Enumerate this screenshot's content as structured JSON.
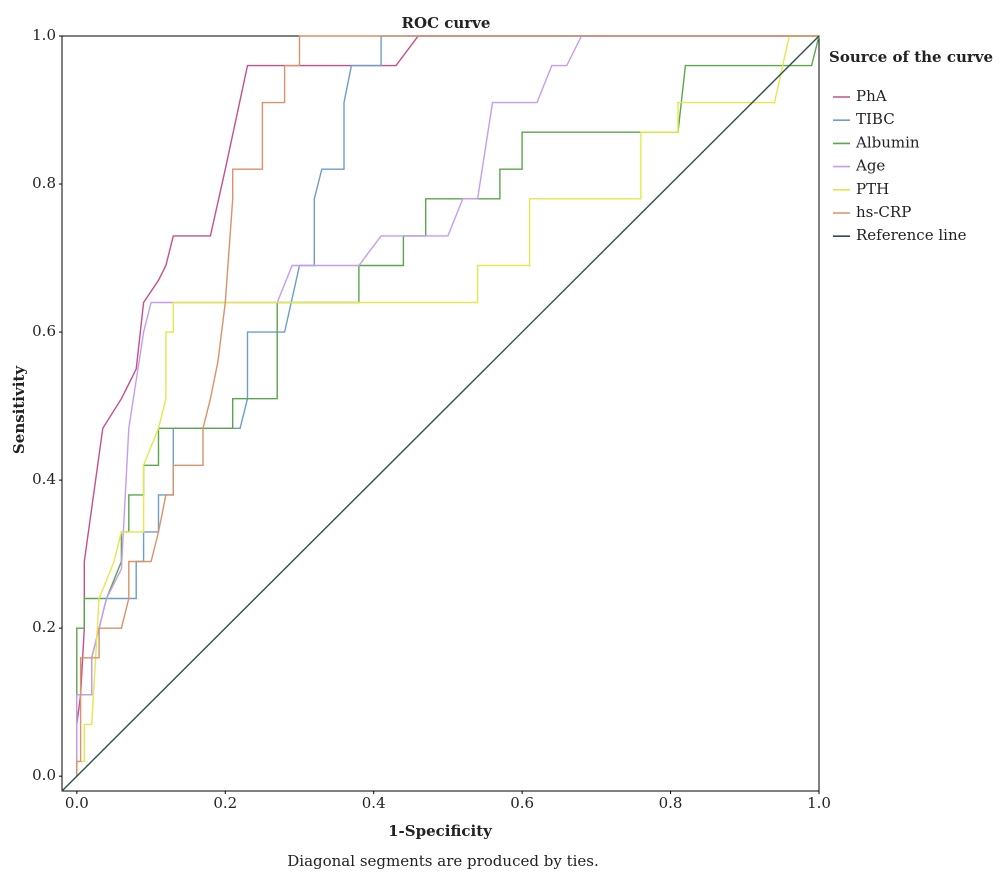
{
  "chart_data": {
    "type": "line",
    "title": "ROC curve",
    "x_label": "1-Specificity",
    "y_label": "Sensitivity",
    "note": "Diagonal segments are produced by ties.",
    "legend_title": "Source of the curve",
    "legend": "right",
    "grid": false,
    "xlim": [
      -0.02,
      1.0
    ],
    "ylim": [
      -0.02,
      1.0
    ],
    "xticks": [
      {
        "value": 0,
        "label": "0.0"
      },
      0.2,
      0.4,
      0.6,
      0.8,
      {
        "value": 1,
        "label": "1.0"
      }
    ],
    "yticks": [
      {
        "value": 0,
        "label": "0.0"
      },
      0.2,
      0.4,
      0.6,
      0.8,
      {
        "value": 1,
        "label": "1.0"
      }
    ],
    "series": [
      {
        "name": "PhA",
        "color": "#c4508c",
        "x": [
          0,
          0,
          0.005,
          0.01,
          0.01,
          0.035,
          0.06,
          0.08,
          0.09,
          0.11,
          0.12,
          0.13,
          0.18,
          0.2,
          0.23,
          0.43,
          0.46,
          1
        ],
        "values": [
          0,
          0.07,
          0.11,
          0.2,
          0.29,
          0.47,
          0.51,
          0.55,
          0.64,
          0.67,
          0.69,
          0.73,
          0.73,
          0.82,
          0.96,
          0.96,
          1,
          1
        ]
      },
      {
        "name": "TIBC",
        "color": "#6d9ec9",
        "x": [
          0,
          0,
          0.02,
          0.02,
          0.03,
          0.04,
          0.08,
          0.08,
          0.09,
          0.09,
          0.11,
          0.11,
          0.13,
          0.13,
          0.22,
          0.23,
          0.23,
          0.28,
          0.3,
          0.32,
          0.32,
          0.33,
          0.36,
          0.36,
          0.37,
          0.41,
          0.41,
          1
        ],
        "values": [
          0,
          0.11,
          0.11,
          0.16,
          0.2,
          0.24,
          0.24,
          0.29,
          0.29,
          0.33,
          0.33,
          0.38,
          0.38,
          0.47,
          0.47,
          0.51,
          0.6,
          0.6,
          0.69,
          0.69,
          0.78,
          0.82,
          0.82,
          0.91,
          0.96,
          0.96,
          1,
          1
        ]
      },
      {
        "name": "Albumin",
        "color": "#5aa64a",
        "x": [
          0,
          0,
          0.01,
          0.01,
          0.04,
          0.06,
          0.06,
          0.07,
          0.07,
          0.09,
          0.09,
          0.11,
          0.11,
          0.21,
          0.21,
          0.27,
          0.27,
          0.38,
          0.38,
          0.44,
          0.44,
          0.47,
          0.47,
          0.57,
          0.57,
          0.6,
          0.6,
          0.81,
          0.82,
          0.99,
          1
        ],
        "values": [
          0,
          0.2,
          0.2,
          0.24,
          0.24,
          0.29,
          0.33,
          0.33,
          0.38,
          0.38,
          0.42,
          0.42,
          0.47,
          0.47,
          0.51,
          0.51,
          0.64,
          0.64,
          0.69,
          0.69,
          0.73,
          0.73,
          0.78,
          0.78,
          0.82,
          0.82,
          0.87,
          0.87,
          0.96,
          0.96,
          1
        ]
      },
      {
        "name": "Age",
        "color": "#c69cf0",
        "x": [
          0,
          0,
          0.02,
          0.02,
          0.04,
          0.06,
          0.07,
          0.09,
          0.1,
          0.27,
          0.29,
          0.38,
          0.41,
          0.5,
          0.52,
          0.54,
          0.56,
          0.62,
          0.64,
          0.66,
          0.68,
          1
        ],
        "values": [
          0,
          0.11,
          0.11,
          0.16,
          0.24,
          0.28,
          0.47,
          0.6,
          0.64,
          0.64,
          0.69,
          0.69,
          0.73,
          0.73,
          0.78,
          0.78,
          0.91,
          0.91,
          0.96,
          0.96,
          1,
          1
        ]
      },
      {
        "name": "PTH",
        "color": "#e3e84c",
        "x": [
          0,
          0.01,
          0.01,
          0.02,
          0.03,
          0.05,
          0.06,
          0.09,
          0.09,
          0.11,
          0.12,
          0.12,
          0.13,
          0.13,
          0.54,
          0.54,
          0.61,
          0.61,
          0.76,
          0.76,
          0.81,
          0.81,
          0.94,
          0.96,
          1
        ],
        "values": [
          0.02,
          0.02,
          0.07,
          0.07,
          0.24,
          0.29,
          0.33,
          0.33,
          0.42,
          0.47,
          0.51,
          0.6,
          0.6,
          0.64,
          0.64,
          0.69,
          0.69,
          0.78,
          0.78,
          0.87,
          0.87,
          0.91,
          0.91,
          1,
          1
        ]
      },
      {
        "name": "hs-CRP",
        "color": "#d9926a",
        "x": [
          0,
          0,
          0.005,
          0.005,
          0.03,
          0.03,
          0.06,
          0.07,
          0.07,
          0.1,
          0.11,
          0.12,
          0.13,
          0.13,
          0.17,
          0.17,
          0.18,
          0.19,
          0.2,
          0.21,
          0.21,
          0.25,
          0.25,
          0.28,
          0.28,
          0.3,
          0.3,
          1
        ],
        "values": [
          0,
          0.02,
          0.02,
          0.16,
          0.16,
          0.2,
          0.2,
          0.24,
          0.29,
          0.29,
          0.33,
          0.38,
          0.38,
          0.42,
          0.42,
          0.47,
          0.51,
          0.56,
          0.64,
          0.78,
          0.82,
          0.82,
          0.91,
          0.91,
          0.96,
          0.96,
          1,
          1
        ]
      },
      {
        "name": "Reference line",
        "color": "#2f4f4f",
        "x": [
          -0.02,
          1
        ],
        "values": [
          -0.02,
          1
        ]
      }
    ]
  }
}
